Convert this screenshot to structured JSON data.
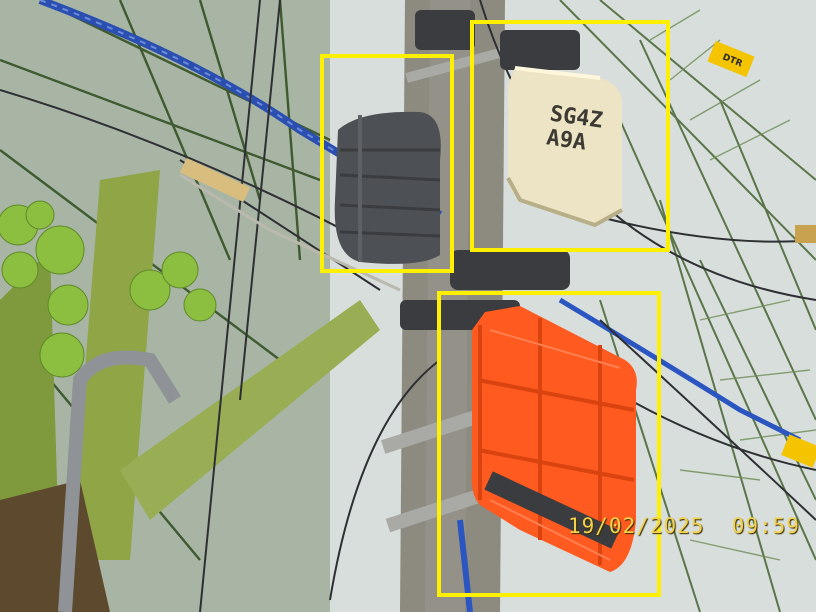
{
  "photo": {
    "timestamp_date": "19/02/2025",
    "timestamp_time": "09:59",
    "white_box_text_line1": "SG4Z",
    "white_box_text_line2": "A9A",
    "tag_text_top": "DTR",
    "highlight_color": "#ffef00",
    "timestamp_color": "#f2d24a",
    "orange_box_color": "#ff5a1f"
  }
}
